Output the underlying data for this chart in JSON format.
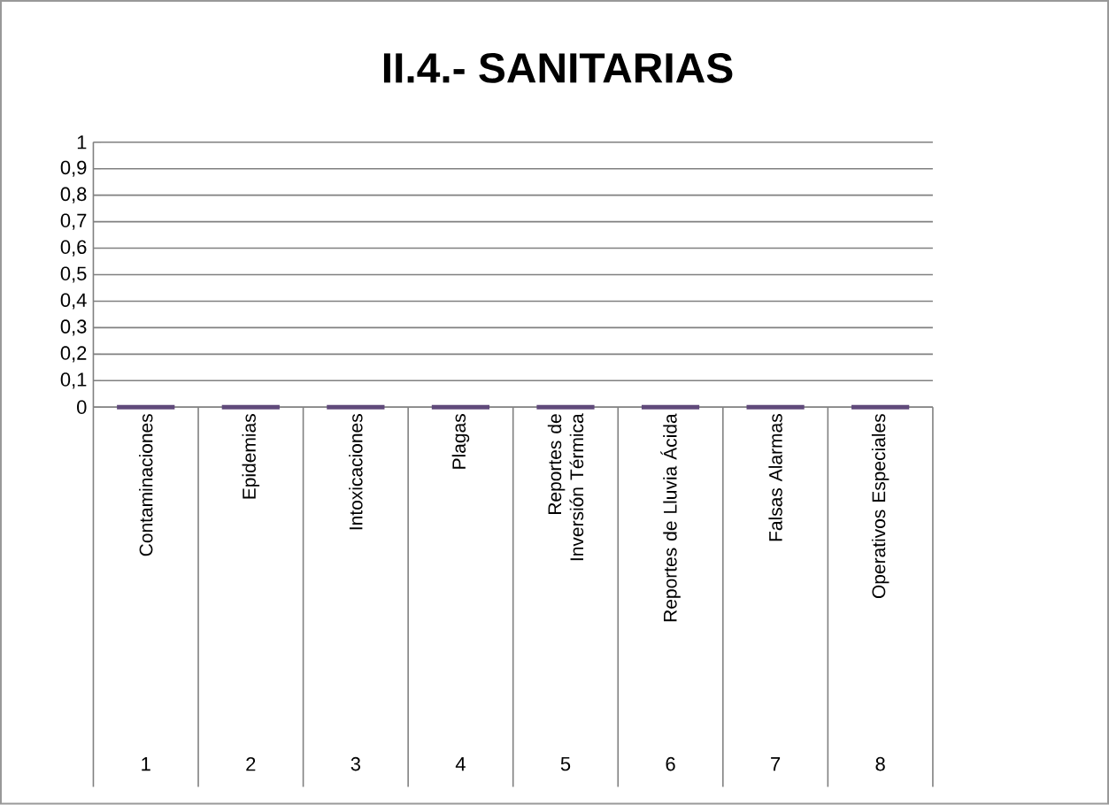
{
  "chart_data": {
    "type": "bar",
    "title": "II.4.- SANITARIAS",
    "categories": [
      "Contaminaciones",
      "Epidemias",
      "Intoxicaciones",
      "Plagas",
      "Reportes de Inversión Térmica",
      "Reportes de Lluvia Ácida",
      "Falsas Alarmas",
      "Operativos Especiales"
    ],
    "values": [
      0,
      0,
      0,
      0,
      0,
      0,
      0,
      0
    ],
    "color": "#604a7b",
    "ylim": [
      0,
      1
    ],
    "yticks": [
      0,
      {
        "value": 0.1,
        "label": "0,1"
      },
      {
        "value": 0.2,
        "label": "0,2"
      },
      {
        "value": 0.3,
        "label": "0,3"
      },
      {
        "value": 0.4,
        "label": "0,4"
      },
      {
        "value": 0.5,
        "label": "0,5"
      },
      {
        "value": 0.6,
        "label": "0,6"
      },
      {
        "value": 0.7,
        "label": "0,7"
      },
      {
        "value": 0.8,
        "label": "0,8"
      },
      {
        "value": 0.9,
        "label": "0,9"
      },
      1
    ],
    "grid": "y",
    "annotations": [
      "1",
      "2",
      "3",
      "4",
      "5",
      "6",
      "7",
      "8"
    ]
  }
}
